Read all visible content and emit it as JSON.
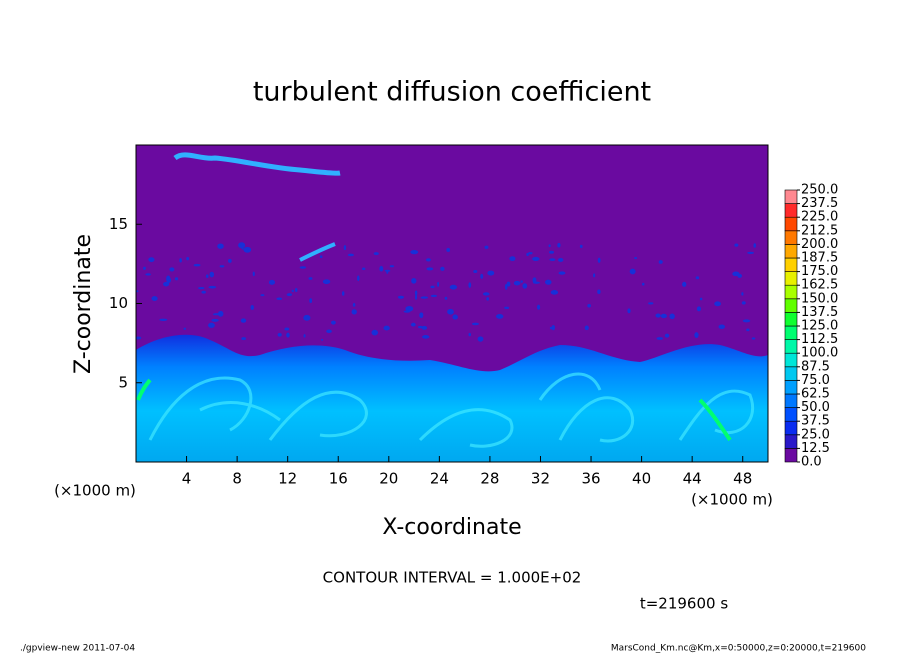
{
  "chart_data": {
    "type": "contour",
    "title": "turbulent diffusion coefficient",
    "xlabel": "X-coordinate",
    "ylabel": "Z-coordinate",
    "x_unit": "(×1000 m)",
    "xlim": [
      0,
      50
    ],
    "ylim": [
      0,
      20
    ],
    "xticks": [
      4,
      8,
      12,
      16,
      20,
      24,
      28,
      32,
      36,
      40,
      44,
      48
    ],
    "yticks": [
      5,
      10,
      15
    ],
    "contour_interval": "CONTOUR INTERVAL = 1.000E+02",
    "time_label": "t=219600 s",
    "footer_left": "./gpview-new  2011-07-04",
    "footer_right": "MarsCond_Km.nc@Km,x=0:50000,z=0:20000,t=219600",
    "colorbar": {
      "levels": [
        {
          "value": 0,
          "label": "0.0"
        },
        {
          "value": 12.5,
          "label": "12.5"
        },
        {
          "value": 25,
          "label": "25.0"
        },
        {
          "value": 37.5,
          "label": "37.5"
        },
        {
          "value": 50,
          "label": "50.0"
        },
        {
          "value": 62.5,
          "label": "62.5"
        },
        {
          "value": 75,
          "label": "75.0"
        },
        {
          "value": 87.5,
          "label": "87.5"
        },
        {
          "value": 100,
          "label": "100.0"
        },
        {
          "value": 112.5,
          "label": "112.5"
        },
        {
          "value": 125,
          "label": "125.0"
        },
        {
          "value": 137.5,
          "label": "137.5"
        },
        {
          "value": 150,
          "label": "150.0"
        },
        {
          "value": 162.5,
          "label": "162.5"
        },
        {
          "value": 175,
          "label": "175.0"
        },
        {
          "value": 187.5,
          "label": "187.5"
        },
        {
          "value": 200,
          "label": "200.0"
        },
        {
          "value": 212.5,
          "label": "212.5"
        },
        {
          "value": 225,
          "label": "225.0"
        },
        {
          "value": 237.5,
          "label": "237.5"
        },
        {
          "value": 250,
          "label": "250.0"
        }
      ],
      "colors": [
        "#6a0aa0",
        "#2a18c8",
        "#0a2cf0",
        "#0050ff",
        "#0078ff",
        "#00a0ff",
        "#00c8f0",
        "#00e6d8",
        "#00f8a8",
        "#00ff70",
        "#10ff30",
        "#60ff00",
        "#a8ff00",
        "#e8f000",
        "#ffd000",
        "#ffa800",
        "#ff7800",
        "#ff4800",
        "#ff2a2a",
        "#ff8890"
      ]
    }
  }
}
